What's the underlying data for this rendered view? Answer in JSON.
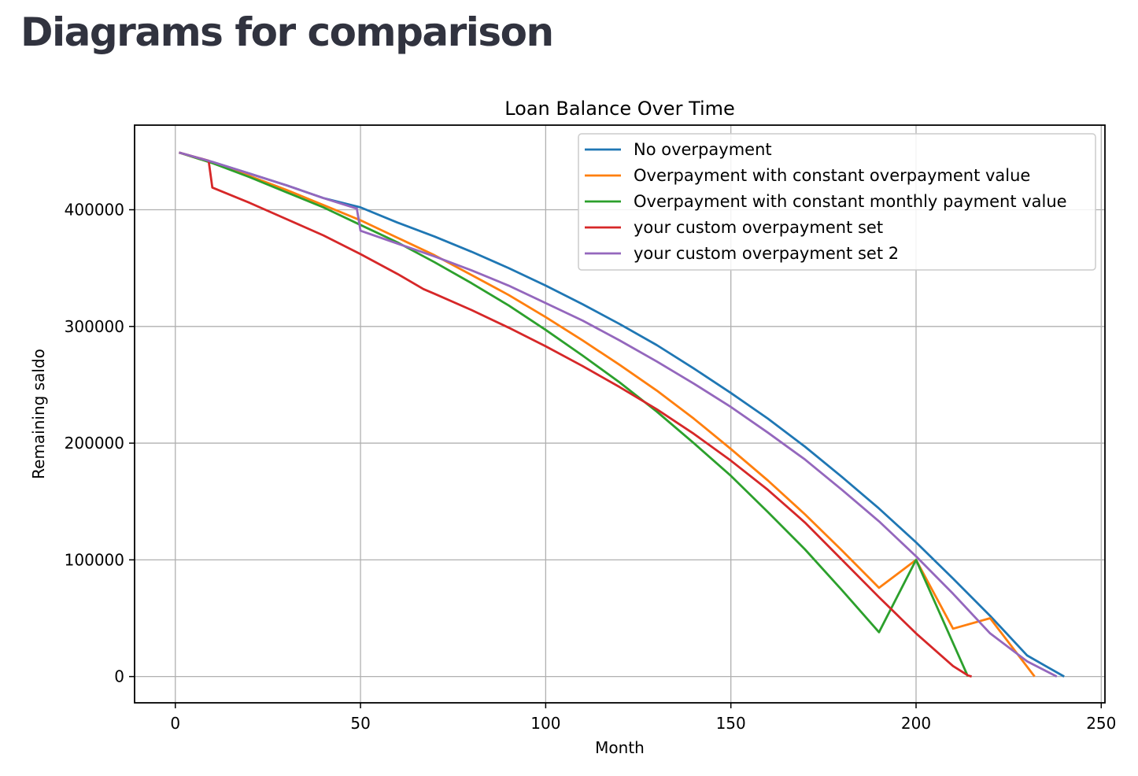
{
  "page": {
    "title": "Diagrams for comparison"
  },
  "chart_data": {
    "type": "line",
    "title": "Loan Balance Over Time",
    "xlabel": "Month",
    "ylabel": "Remaining saldo",
    "xlim": [
      -11,
      251
    ],
    "ylim": [
      -22500,
      472500
    ],
    "xticks": [
      0,
      50,
      100,
      150,
      200,
      250
    ],
    "yticks": [
      0,
      100000,
      200000,
      300000,
      400000
    ],
    "grid": true,
    "legend_position": "top-right",
    "series": [
      {
        "name": "No overpayment",
        "color": "#1f77b4",
        "points": [
          [
            1,
            449000
          ],
          [
            10,
            441000
          ],
          [
            20,
            431000
          ],
          [
            30,
            421000
          ],
          [
            40,
            410000
          ],
          [
            50,
            402000
          ],
          [
            60,
            389000
          ],
          [
            70,
            377000
          ],
          [
            80,
            364000
          ],
          [
            90,
            350000
          ],
          [
            100,
            335000
          ],
          [
            110,
            319000
          ],
          [
            120,
            302000
          ],
          [
            130,
            284000
          ],
          [
            140,
            264000
          ],
          [
            150,
            243000
          ],
          [
            160,
            221000
          ],
          [
            170,
            197000
          ],
          [
            180,
            171000
          ],
          [
            190,
            144000
          ],
          [
            200,
            115000
          ],
          [
            210,
            84000
          ],
          [
            220,
            52000
          ],
          [
            230,
            18000
          ],
          [
            235,
            9000
          ],
          [
            240,
            0
          ]
        ]
      },
      {
        "name": "Overpayment with constant overpayment value",
        "color": "#ff7f0e",
        "points": [
          [
            1,
            449000
          ],
          [
            10,
            440000
          ],
          [
            20,
            429000
          ],
          [
            30,
            417000
          ],
          [
            40,
            404000
          ],
          [
            50,
            391000
          ],
          [
            60,
            376000
          ],
          [
            70,
            361000
          ],
          [
            80,
            344000
          ],
          [
            90,
            327000
          ],
          [
            100,
            308000
          ],
          [
            110,
            288000
          ],
          [
            120,
            267000
          ],
          [
            130,
            245000
          ],
          [
            140,
            221000
          ],
          [
            150,
            195000
          ],
          [
            160,
            168000
          ],
          [
            170,
            139000
          ],
          [
            180,
            108000
          ],
          [
            190,
            76000
          ],
          [
            200,
            100000
          ],
          [
            210,
            41000
          ],
          [
            220,
            50000
          ],
          [
            232,
            0
          ]
        ]
      },
      {
        "name": "Overpayment with constant monthly payment value",
        "color": "#2ca02c",
        "points": [
          [
            1,
            449000
          ],
          [
            10,
            440000
          ],
          [
            20,
            428000
          ],
          [
            30,
            415000
          ],
          [
            40,
            402000
          ],
          [
            50,
            387000
          ],
          [
            60,
            372000
          ],
          [
            70,
            355000
          ],
          [
            80,
            337000
          ],
          [
            90,
            318000
          ],
          [
            100,
            297000
          ],
          [
            110,
            275000
          ],
          [
            120,
            252000
          ],
          [
            130,
            227000
          ],
          [
            140,
            200000
          ],
          [
            150,
            172000
          ],
          [
            160,
            141000
          ],
          [
            170,
            109000
          ],
          [
            180,
            74000
          ],
          [
            190,
            38000
          ],
          [
            200,
            100000
          ],
          [
            214,
            0
          ]
        ]
      },
      {
        "name": "your custom overpayment set",
        "color": "#d62728",
        "points": [
          [
            1,
            449000
          ],
          [
            9,
            442000
          ],
          [
            10,
            419000
          ],
          [
            20,
            406000
          ],
          [
            30,
            392000
          ],
          [
            40,
            378000
          ],
          [
            50,
            362000
          ],
          [
            60,
            345000
          ],
          [
            67,
            332000
          ],
          [
            70,
            328000
          ],
          [
            80,
            314000
          ],
          [
            90,
            299000
          ],
          [
            100,
            283000
          ],
          [
            110,
            266000
          ],
          [
            120,
            248000
          ],
          [
            130,
            229000
          ],
          [
            140,
            208000
          ],
          [
            150,
            185000
          ],
          [
            160,
            160000
          ],
          [
            170,
            132000
          ],
          [
            180,
            100000
          ],
          [
            190,
            68000
          ],
          [
            200,
            37000
          ],
          [
            210,
            9000
          ],
          [
            214,
            1000
          ],
          [
            215,
            0
          ]
        ]
      },
      {
        "name": "your custom overpayment set 2",
        "color": "#9467bd",
        "points": [
          [
            1,
            449000
          ],
          [
            10,
            441000
          ],
          [
            20,
            431000
          ],
          [
            30,
            421000
          ],
          [
            40,
            410000
          ],
          [
            49,
            401000
          ],
          [
            50,
            382000
          ],
          [
            60,
            371000
          ],
          [
            70,
            360000
          ],
          [
            80,
            348000
          ],
          [
            90,
            335000
          ],
          [
            100,
            320000
          ],
          [
            110,
            305000
          ],
          [
            120,
            288000
          ],
          [
            130,
            270000
          ],
          [
            140,
            251000
          ],
          [
            150,
            231000
          ],
          [
            160,
            209000
          ],
          [
            170,
            186000
          ],
          [
            180,
            160000
          ],
          [
            190,
            133000
          ],
          [
            200,
            103000
          ],
          [
            210,
            71000
          ],
          [
            220,
            37000
          ],
          [
            230,
            13000
          ],
          [
            238,
            0
          ]
        ]
      }
    ]
  }
}
